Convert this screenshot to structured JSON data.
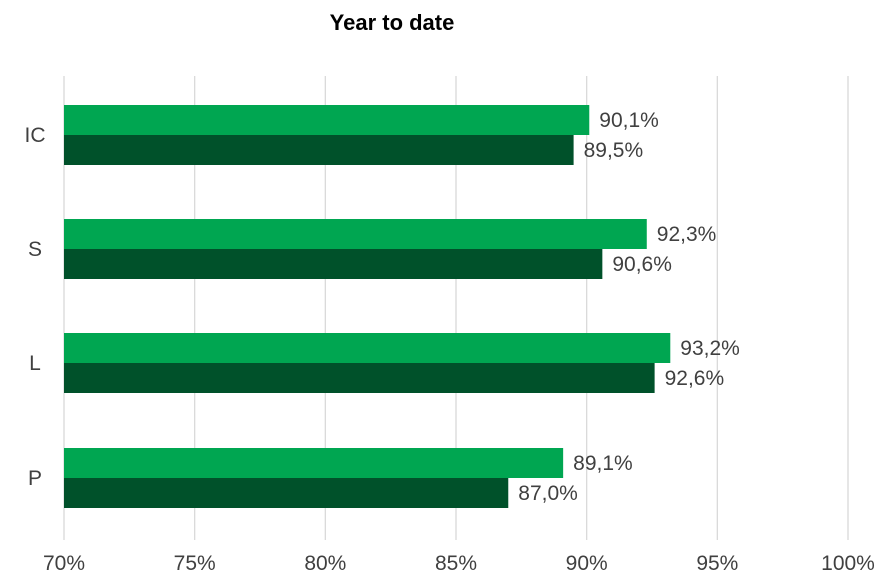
{
  "chart_data": {
    "type": "bar",
    "orientation": "horizontal",
    "title": "Year to date",
    "xlabel": "",
    "ylabel": "",
    "categories": [
      "IC",
      "S",
      "L",
      "P"
    ],
    "series": [
      {
        "color": "#00A651",
        "values": [
          90.1,
          92.3,
          93.2,
          89.1
        ],
        "labels": [
          "90,1%",
          "92,3%",
          "93,2%",
          "89,1%"
        ]
      },
      {
        "color": "#00512A",
        "values": [
          89.5,
          90.6,
          92.6,
          87.0
        ],
        "labels": [
          "89,5%",
          "90,6%",
          "92,6%",
          "87,0%"
        ]
      }
    ],
    "xlim": [
      70,
      100
    ],
    "xticks": [
      70,
      75,
      80,
      85,
      90,
      95,
      100
    ],
    "xtick_labels": [
      "70%",
      "75%",
      "80%",
      "85%",
      "90%",
      "95%",
      "100%"
    ],
    "grid": true,
    "legend": "none",
    "colors": {
      "gridline": "#D9D9D9",
      "text": "#404040"
    }
  }
}
